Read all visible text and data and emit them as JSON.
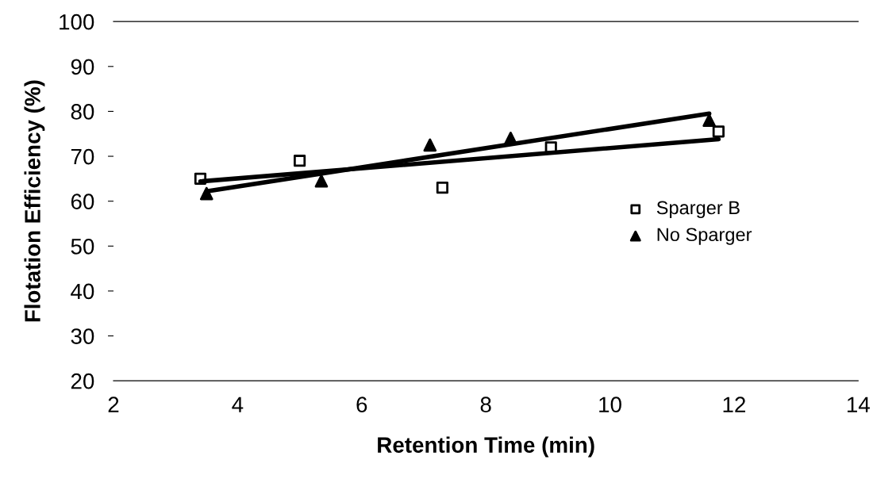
{
  "chart_data": {
    "type": "scatter",
    "xlabel": "Retention Time (min)",
    "ylabel": "Flotation Efficiency (%)",
    "xlim": [
      2,
      14
    ],
    "xticks": [
      2,
      4,
      6,
      8,
      10,
      12,
      14
    ],
    "ylim": [
      20,
      100
    ],
    "yticks": [
      20,
      30,
      40,
      50,
      60,
      70,
      80,
      90,
      100
    ],
    "grid": false,
    "legend": "right",
    "series": [
      {
        "name": "Sparger B",
        "marker": "square",
        "color": "#000000",
        "x": [
          3.4,
          5.0,
          7.3,
          9.05,
          11.75
        ],
        "values": [
          65,
          69,
          63,
          72,
          75.5
        ]
      },
      {
        "name": "No Sparger",
        "marker": "triangle",
        "color": "#000000",
        "x": [
          3.5,
          5.35,
          7.1,
          8.4,
          11.6
        ],
        "values": [
          61.7,
          64.5,
          72.5,
          74,
          78
        ]
      },
      {
        "type": "line",
        "marker": "none",
        "color": "#000000",
        "x": [
          3.4,
          11.75
        ],
        "values": [
          64.4,
          73.8
        ]
      },
      {
        "type": "line",
        "marker": "none",
        "color": "#000000",
        "x": [
          3.5,
          11.6
        ],
        "values": [
          62.2,
          79.5
        ]
      }
    ]
  }
}
